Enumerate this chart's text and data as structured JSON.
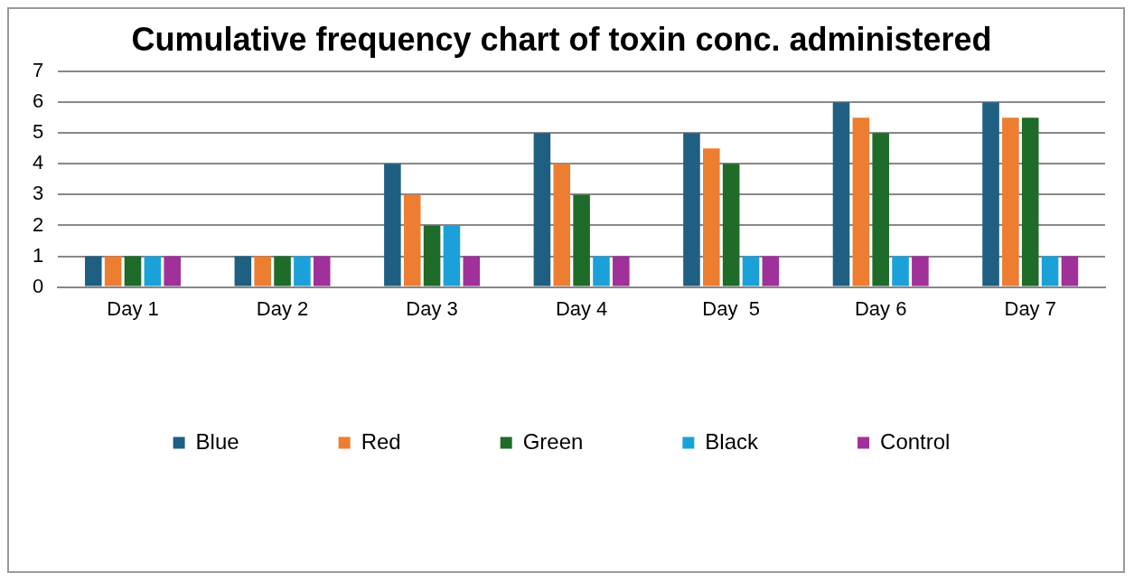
{
  "chart_data": {
    "type": "bar",
    "title": "Cumulative frequency chart of toxin conc. administered",
    "categories": [
      "Day 1",
      "Day 2",
      "Day 3",
      "Day 4",
      "Day  5",
      "Day 6",
      "Day 7"
    ],
    "series": [
      {
        "name": "Blue",
        "color": "#1f5f82",
        "values": [
          1,
          1,
          4,
          5,
          5,
          6,
          6
        ]
      },
      {
        "name": "Red",
        "color": "#ed7d31",
        "values": [
          1,
          1,
          3,
          4,
          4.5,
          5.5,
          5.5
        ]
      },
      {
        "name": "Green",
        "color": "#1e6b2a",
        "values": [
          1,
          1,
          2,
          3,
          4,
          5,
          5.5
        ]
      },
      {
        "name": "Black",
        "color": "#1ba1d9",
        "values": [
          1,
          1,
          2,
          1,
          1,
          1,
          1
        ]
      },
      {
        "name": "Control",
        "color": "#a0309a",
        "values": [
          1,
          1,
          1,
          1,
          1,
          1,
          1
        ]
      }
    ],
    "ylim": [
      0,
      7
    ],
    "yticks": [
      0,
      1,
      2,
      3,
      4,
      5,
      6,
      7
    ],
    "grid": "y",
    "legend": "bottom"
  }
}
